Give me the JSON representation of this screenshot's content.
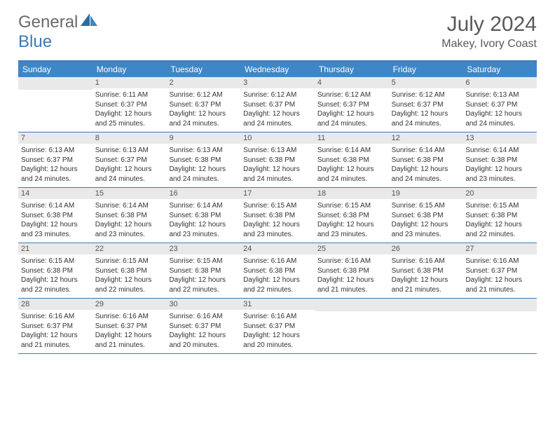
{
  "brand": {
    "general": "General",
    "blue": "Blue"
  },
  "title": "July 2024",
  "location": "Makey, Ivory Coast",
  "colors": {
    "accent": "#3f86c6",
    "border": "#3a7ab8",
    "daynum_bg": "#e9e9e9",
    "text": "#333333",
    "title_text": "#595959"
  },
  "weekdays": [
    "Sunday",
    "Monday",
    "Tuesday",
    "Wednesday",
    "Thursday",
    "Friday",
    "Saturday"
  ],
  "weeks": [
    [
      null,
      {
        "n": "1",
        "sr": "Sunrise: 6:11 AM",
        "ss": "Sunset: 6:37 PM",
        "d1": "Daylight: 12 hours",
        "d2": "and 25 minutes."
      },
      {
        "n": "2",
        "sr": "Sunrise: 6:12 AM",
        "ss": "Sunset: 6:37 PM",
        "d1": "Daylight: 12 hours",
        "d2": "and 24 minutes."
      },
      {
        "n": "3",
        "sr": "Sunrise: 6:12 AM",
        "ss": "Sunset: 6:37 PM",
        "d1": "Daylight: 12 hours",
        "d2": "and 24 minutes."
      },
      {
        "n": "4",
        "sr": "Sunrise: 6:12 AM",
        "ss": "Sunset: 6:37 PM",
        "d1": "Daylight: 12 hours",
        "d2": "and 24 minutes."
      },
      {
        "n": "5",
        "sr": "Sunrise: 6:12 AM",
        "ss": "Sunset: 6:37 PM",
        "d1": "Daylight: 12 hours",
        "d2": "and 24 minutes."
      },
      {
        "n": "6",
        "sr": "Sunrise: 6:13 AM",
        "ss": "Sunset: 6:37 PM",
        "d1": "Daylight: 12 hours",
        "d2": "and 24 minutes."
      }
    ],
    [
      {
        "n": "7",
        "sr": "Sunrise: 6:13 AM",
        "ss": "Sunset: 6:37 PM",
        "d1": "Daylight: 12 hours",
        "d2": "and 24 minutes."
      },
      {
        "n": "8",
        "sr": "Sunrise: 6:13 AM",
        "ss": "Sunset: 6:37 PM",
        "d1": "Daylight: 12 hours",
        "d2": "and 24 minutes."
      },
      {
        "n": "9",
        "sr": "Sunrise: 6:13 AM",
        "ss": "Sunset: 6:38 PM",
        "d1": "Daylight: 12 hours",
        "d2": "and 24 minutes."
      },
      {
        "n": "10",
        "sr": "Sunrise: 6:13 AM",
        "ss": "Sunset: 6:38 PM",
        "d1": "Daylight: 12 hours",
        "d2": "and 24 minutes."
      },
      {
        "n": "11",
        "sr": "Sunrise: 6:14 AM",
        "ss": "Sunset: 6:38 PM",
        "d1": "Daylight: 12 hours",
        "d2": "and 24 minutes."
      },
      {
        "n": "12",
        "sr": "Sunrise: 6:14 AM",
        "ss": "Sunset: 6:38 PM",
        "d1": "Daylight: 12 hours",
        "d2": "and 24 minutes."
      },
      {
        "n": "13",
        "sr": "Sunrise: 6:14 AM",
        "ss": "Sunset: 6:38 PM",
        "d1": "Daylight: 12 hours",
        "d2": "and 23 minutes."
      }
    ],
    [
      {
        "n": "14",
        "sr": "Sunrise: 6:14 AM",
        "ss": "Sunset: 6:38 PM",
        "d1": "Daylight: 12 hours",
        "d2": "and 23 minutes."
      },
      {
        "n": "15",
        "sr": "Sunrise: 6:14 AM",
        "ss": "Sunset: 6:38 PM",
        "d1": "Daylight: 12 hours",
        "d2": "and 23 minutes."
      },
      {
        "n": "16",
        "sr": "Sunrise: 6:14 AM",
        "ss": "Sunset: 6:38 PM",
        "d1": "Daylight: 12 hours",
        "d2": "and 23 minutes."
      },
      {
        "n": "17",
        "sr": "Sunrise: 6:15 AM",
        "ss": "Sunset: 6:38 PM",
        "d1": "Daylight: 12 hours",
        "d2": "and 23 minutes."
      },
      {
        "n": "18",
        "sr": "Sunrise: 6:15 AM",
        "ss": "Sunset: 6:38 PM",
        "d1": "Daylight: 12 hours",
        "d2": "and 23 minutes."
      },
      {
        "n": "19",
        "sr": "Sunrise: 6:15 AM",
        "ss": "Sunset: 6:38 PM",
        "d1": "Daylight: 12 hours",
        "d2": "and 23 minutes."
      },
      {
        "n": "20",
        "sr": "Sunrise: 6:15 AM",
        "ss": "Sunset: 6:38 PM",
        "d1": "Daylight: 12 hours",
        "d2": "and 22 minutes."
      }
    ],
    [
      {
        "n": "21",
        "sr": "Sunrise: 6:15 AM",
        "ss": "Sunset: 6:38 PM",
        "d1": "Daylight: 12 hours",
        "d2": "and 22 minutes."
      },
      {
        "n": "22",
        "sr": "Sunrise: 6:15 AM",
        "ss": "Sunset: 6:38 PM",
        "d1": "Daylight: 12 hours",
        "d2": "and 22 minutes."
      },
      {
        "n": "23",
        "sr": "Sunrise: 6:15 AM",
        "ss": "Sunset: 6:38 PM",
        "d1": "Daylight: 12 hours",
        "d2": "and 22 minutes."
      },
      {
        "n": "24",
        "sr": "Sunrise: 6:16 AM",
        "ss": "Sunset: 6:38 PM",
        "d1": "Daylight: 12 hours",
        "d2": "and 22 minutes."
      },
      {
        "n": "25",
        "sr": "Sunrise: 6:16 AM",
        "ss": "Sunset: 6:38 PM",
        "d1": "Daylight: 12 hours",
        "d2": "and 21 minutes."
      },
      {
        "n": "26",
        "sr": "Sunrise: 6:16 AM",
        "ss": "Sunset: 6:38 PM",
        "d1": "Daylight: 12 hours",
        "d2": "and 21 minutes."
      },
      {
        "n": "27",
        "sr": "Sunrise: 6:16 AM",
        "ss": "Sunset: 6:37 PM",
        "d1": "Daylight: 12 hours",
        "d2": "and 21 minutes."
      }
    ],
    [
      {
        "n": "28",
        "sr": "Sunrise: 6:16 AM",
        "ss": "Sunset: 6:37 PM",
        "d1": "Daylight: 12 hours",
        "d2": "and 21 minutes."
      },
      {
        "n": "29",
        "sr": "Sunrise: 6:16 AM",
        "ss": "Sunset: 6:37 PM",
        "d1": "Daylight: 12 hours",
        "d2": "and 21 minutes."
      },
      {
        "n": "30",
        "sr": "Sunrise: 6:16 AM",
        "ss": "Sunset: 6:37 PM",
        "d1": "Daylight: 12 hours",
        "d2": "and 20 minutes."
      },
      {
        "n": "31",
        "sr": "Sunrise: 6:16 AM",
        "ss": "Sunset: 6:37 PM",
        "d1": "Daylight: 12 hours",
        "d2": "and 20 minutes."
      },
      null,
      null,
      null
    ]
  ]
}
